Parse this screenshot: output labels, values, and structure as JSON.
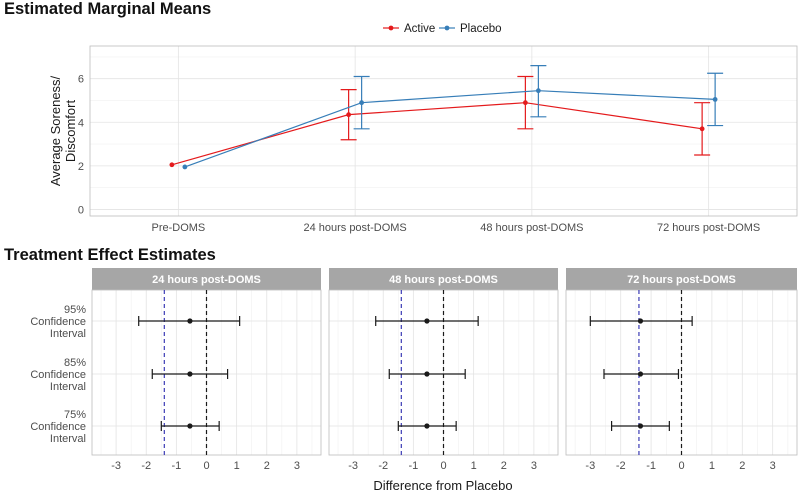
{
  "chart_data": [
    {
      "type": "line",
      "title": "Estimated Marginal Means",
      "ylabel_lines": [
        "Average Soreness/",
        "Discomfort"
      ],
      "xlabel": "",
      "categories": [
        "Pre-DOMS",
        "24 hours post-DOMS",
        "48 hours post-DOMS",
        "72 hours post-DOMS"
      ],
      "ylim": [
        -0.3,
        7.5
      ],
      "yticks": [
        0,
        2,
        4,
        6
      ],
      "grid": true,
      "legend_position": "top",
      "series": [
        {
          "name": "Active",
          "color": "#e41a1c",
          "values": [
            2.05,
            4.35,
            4.9,
            3.7
          ],
          "lower": [
            null,
            3.2,
            3.7,
            2.5
          ],
          "upper": [
            null,
            5.5,
            6.1,
            4.9
          ]
        },
        {
          "name": "Placebo",
          "color": "#377eb8",
          "values": [
            1.95,
            4.9,
            5.45,
            5.05
          ],
          "lower": [
            null,
            3.7,
            4.25,
            3.85
          ],
          "upper": [
            null,
            6.1,
            6.6,
            6.25
          ]
        }
      ]
    },
    {
      "type": "interval",
      "title": "Treatment Effect Estimates",
      "xlabel": "Difference from Placebo",
      "xlim": [
        -3.8,
        3.8
      ],
      "xticks": [
        -3,
        -2,
        -1,
        0,
        1,
        2,
        3
      ],
      "grid": true,
      "intervals": [
        {
          "lines": [
            "95%",
            "Confidence",
            "Interval"
          ]
        },
        {
          "lines": [
            "85%",
            "Confidence",
            "Interval"
          ]
        },
        {
          "lines": [
            "75%",
            "Confidence",
            "Interval"
          ]
        }
      ],
      "zero_line": 0,
      "panels": [
        {
          "strip": "24 hours post-DOMS",
          "estimate": -0.55,
          "reference": -1.4,
          "ci": [
            [
              -2.25,
              1.1
            ],
            [
              -1.8,
              0.7
            ],
            [
              -1.5,
              0.42
            ]
          ]
        },
        {
          "strip": "48 hours post-DOMS",
          "estimate": -0.55,
          "reference": -1.4,
          "ci": [
            [
              -2.25,
              1.15
            ],
            [
              -1.8,
              0.72
            ],
            [
              -1.5,
              0.42
            ]
          ]
        },
        {
          "strip": "72 hours post-DOMS",
          "estimate": -1.35,
          "reference": -1.4,
          "ci": [
            [
              -3.0,
              0.35
            ],
            [
              -2.55,
              -0.1
            ],
            [
              -2.3,
              -0.4
            ]
          ]
        }
      ]
    }
  ]
}
